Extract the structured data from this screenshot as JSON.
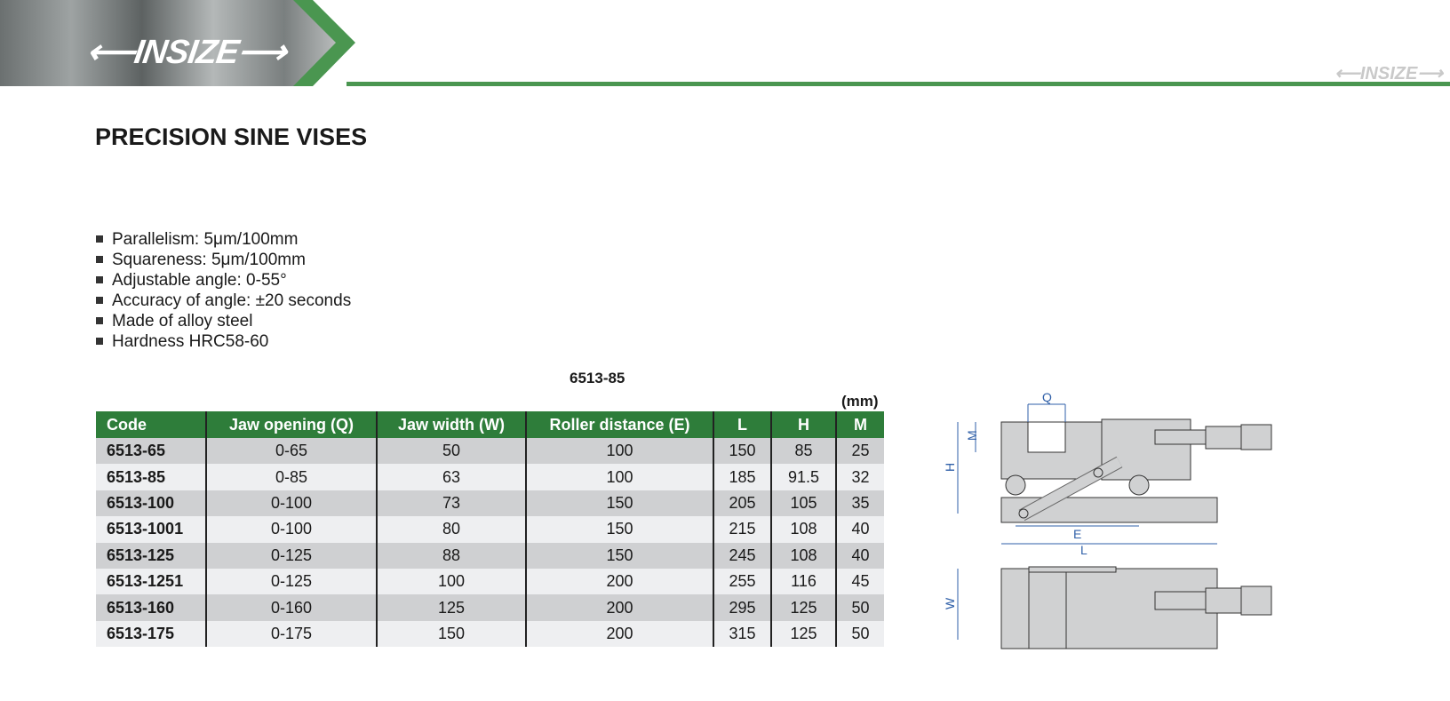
{
  "brand": {
    "logo_text": "INSIZE",
    "accent": "#2e7d3a"
  },
  "title": "PRECISION SINE VISES",
  "features": [
    "Parallelism: 5μm/100mm",
    "Squareness: 5μm/100mm",
    "Adjustable angle: 0-55°",
    "Accuracy of angle: ±20 seconds",
    "Made of alloy steel",
    "Hardness HRC58-60"
  ],
  "table": {
    "model_label": "6513-85",
    "unit": "(mm)",
    "headers": [
      "Code",
      "Jaw opening (Q)",
      "Jaw width (W)",
      "Roller distance (E)",
      "L",
      "H",
      "M"
    ],
    "rows": [
      [
        "6513-65",
        "0-65",
        "50",
        "100",
        "150",
        "85",
        "25"
      ],
      [
        "6513-85",
        "0-85",
        "63",
        "100",
        "185",
        "91.5",
        "32"
      ],
      [
        "6513-100",
        "0-100",
        "73",
        "150",
        "205",
        "105",
        "35"
      ],
      [
        "6513-1001",
        "0-100",
        "80",
        "150",
        "215",
        "108",
        "40"
      ],
      [
        "6513-125",
        "0-125",
        "88",
        "150",
        "245",
        "108",
        "40"
      ],
      [
        "6513-1251",
        "0-125",
        "100",
        "200",
        "255",
        "116",
        "45"
      ],
      [
        "6513-160",
        "0-160",
        "125",
        "200",
        "295",
        "125",
        "50"
      ],
      [
        "6513-175",
        "0-175",
        "150",
        "200",
        "315",
        "125",
        "50"
      ]
    ]
  },
  "diagram": {
    "labels": {
      "q": "Q",
      "m": "M",
      "h": "H",
      "e": "E",
      "l": "L",
      "w": "W"
    }
  }
}
